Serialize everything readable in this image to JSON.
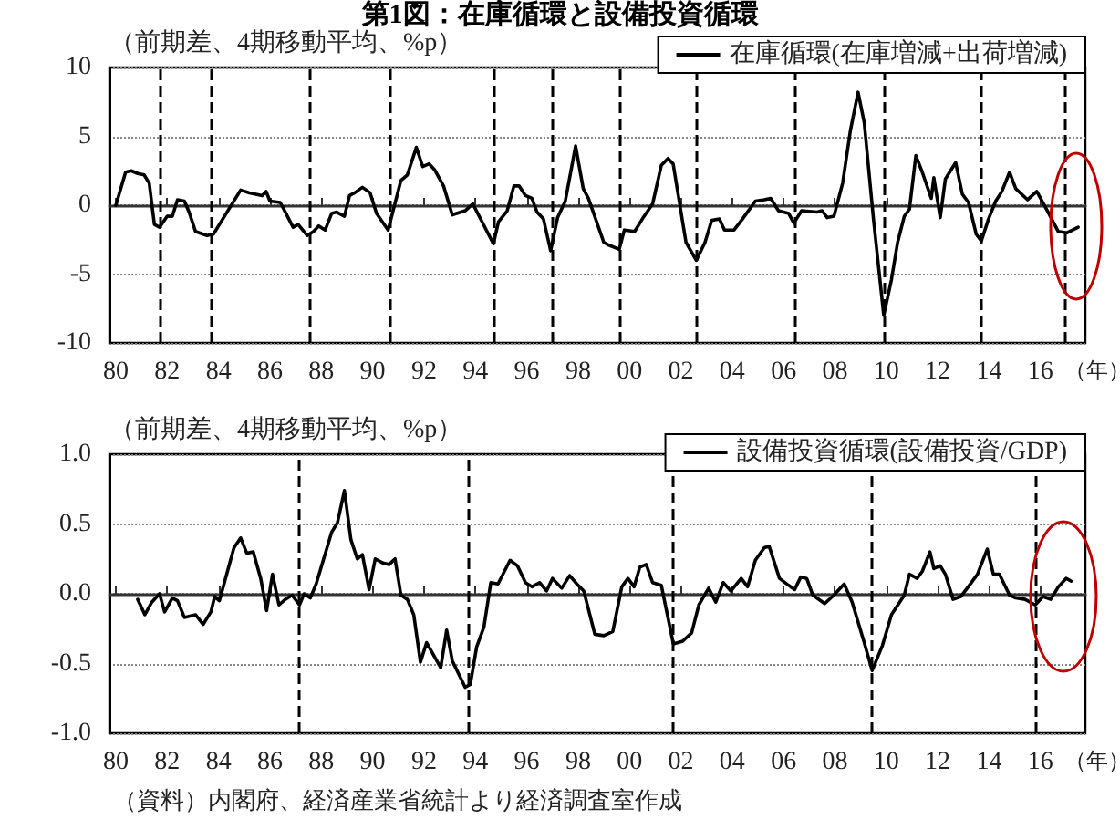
{
  "chart_data": [
    {
      "type": "line",
      "title": "第1図：在庫循環と設備投資循環",
      "ylabel": "（前期差、4期移動平均、%p）",
      "xlabel": "（年）",
      "xlim": [
        1979.75,
        2017.75
      ],
      "xticks": [
        {
          "value": 1980,
          "label": "80"
        },
        {
          "value": 1982,
          "label": "82"
        },
        {
          "value": 1984,
          "label": "84"
        },
        {
          "value": 1986,
          "label": "86"
        },
        {
          "value": 1988,
          "label": "88"
        },
        {
          "value": 1990,
          "label": "90"
        },
        {
          "value": 1992,
          "label": "92"
        },
        {
          "value": 1994,
          "label": "94"
        },
        {
          "value": 1996,
          "label": "96"
        },
        {
          "value": 1998,
          "label": "98"
        },
        {
          "value": 2000,
          "label": "00"
        },
        {
          "value": 2002,
          "label": "02"
        },
        {
          "value": 2004,
          "label": "04"
        },
        {
          "value": 2006,
          "label": "06"
        },
        {
          "value": 2008,
          "label": "08"
        },
        {
          "value": 2010,
          "label": "10"
        },
        {
          "value": 2012,
          "label": "12"
        },
        {
          "value": 2014,
          "label": "14"
        },
        {
          "value": 2016,
          "label": "16"
        }
      ],
      "ylim": [
        -10,
        10
      ],
      "yticks": [
        -10,
        -5,
        0,
        5,
        10
      ],
      "grid": "y",
      "legend": "top right",
      "marker": "none",
      "line_style": "solid",
      "series": [
        {
          "name": "在庫循環(在庫増減+出荷増減)",
          "color": "#000000",
          "x": [
            1980.0,
            1980.38,
            1980.6,
            1980.85,
            1981.1,
            1981.3,
            1981.5,
            1981.7,
            1982.0,
            1982.2,
            1982.4,
            1982.67,
            1982.85,
            1983.1,
            1983.55,
            1983.8,
            1984.86,
            1985.2,
            1985.7,
            1985.85,
            1986.0,
            1986.4,
            1986.6,
            1986.9,
            1987.1,
            1987.45,
            1987.7,
            1987.9,
            1988.15,
            1988.4,
            1988.6,
            1988.9,
            1989.1,
            1989.3,
            1989.6,
            1989.9,
            1990.15,
            1990.6,
            1991.1,
            1991.35,
            1991.7,
            1991.95,
            1992.2,
            1992.4,
            1992.76,
            1993.1,
            1993.6,
            1993.9,
            1994.7,
            1994.9,
            1995.24,
            1995.5,
            1995.7,
            1995.95,
            1996.2,
            1996.4,
            1996.65,
            1996.93,
            1997.2,
            1997.5,
            1997.9,
            1998.2,
            1998.4,
            1999.0,
            1999.2,
            1999.6,
            1999.8,
            2000.2,
            2000.5,
            2000.9,
            2001.24,
            2001.5,
            2001.7,
            2002.2,
            2002.6,
            2002.94,
            2003.2,
            2003.5,
            2003.7,
            2004.07,
            2004.4,
            2004.9,
            2005.25,
            2005.5,
            2005.8,
            2006.2,
            2006.4,
            2006.7,
            2007.3,
            2007.5,
            2007.7,
            2007.96,
            2008.3,
            2008.6,
            2008.9,
            2009.14,
            2009.5,
            2009.9,
            2010.2,
            2010.44,
            2010.7,
            2010.9,
            2011.15,
            2011.4,
            2011.75,
            2011.85,
            2012.1,
            2012.3,
            2012.7,
            2012.96,
            2013.2,
            2013.5,
            2013.7,
            2013.98,
            2014.26,
            2014.5,
            2014.8,
            2015.04,
            2015.5,
            2015.86,
            2016.3,
            2016.69,
            2017.04,
            2017.47
          ],
          "values": [
            0,
            2.4,
            2.5,
            2.3,
            2.2,
            1.6,
            -1.4,
            -1.6,
            -0.8,
            -0.8,
            0.4,
            0.3,
            -0.5,
            -1.9,
            -2.2,
            -2.1,
            1.1,
            0.9,
            0.7,
            1.0,
            0.3,
            0.2,
            -0.5,
            -1.6,
            -1.4,
            -2.2,
            -1.9,
            -1.5,
            -1.8,
            -0.6,
            -0.5,
            -0.8,
            0.7,
            0.9,
            1.3,
            0.9,
            -0.6,
            -1.8,
            1.8,
            2.2,
            4.2,
            2.8,
            3.0,
            2.6,
            1.4,
            -0.7,
            -0.4,
            0.1,
            -2.8,
            -1.2,
            -0.4,
            1.4,
            1.4,
            0.7,
            0.5,
            -0.5,
            -1.0,
            -3.3,
            -0.9,
            0.3,
            4.3,
            1.2,
            0.5,
            -2.7,
            -2.9,
            -3.2,
            -1.8,
            -1.9,
            -1.0,
            0.1,
            2.9,
            3.4,
            3.0,
            -2.7,
            -4.0,
            -2.7,
            -1.1,
            -1.0,
            -1.8,
            -1.8,
            -1.0,
            0.3,
            0.4,
            0.5,
            -0.4,
            -0.6,
            -1.3,
            -0.4,
            -0.5,
            -0.4,
            -0.9,
            -0.8,
            1.6,
            5.4,
            8.2,
            6.0,
            -1.0,
            -8.0,
            -5.4,
            -2.7,
            -0.8,
            -0.3,
            3.6,
            2.4,
            0.5,
            2.0,
            -0.9,
            1.9,
            3.1,
            0.8,
            0.2,
            -2.1,
            -2.6,
            -1.0,
            0.3,
            1.0,
            2.4,
            1.2,
            0.4,
            1.0,
            -0.5,
            -1.9,
            -2.0,
            -1.6
          ]
        }
      ],
      "ref_lines": [
        {
          "axis": "x",
          "value": 1981.7,
          "color": "#000000",
          "line_style": "dashed"
        },
        {
          "axis": "x",
          "value": 1983.68,
          "color": "#000000",
          "line_style": "dashed"
        },
        {
          "axis": "x",
          "value": 1987.57,
          "color": "#000000",
          "line_style": "dashed"
        },
        {
          "axis": "x",
          "value": 1990.68,
          "color": "#000000",
          "line_style": "dashed"
        },
        {
          "axis": "x",
          "value": 1994.71,
          "color": "#000000",
          "line_style": "dashed"
        },
        {
          "axis": "x",
          "value": 1996.97,
          "color": "#000000",
          "line_style": "dashed"
        },
        {
          "axis": "x",
          "value": 1999.59,
          "color": "#000000",
          "line_style": "dashed"
        },
        {
          "axis": "x",
          "value": 2002.63,
          "color": "#000000",
          "line_style": "dashed"
        },
        {
          "axis": "x",
          "value": 2006.45,
          "color": "#000000",
          "line_style": "dashed"
        },
        {
          "axis": "x",
          "value": 2009.91,
          "color": "#000000",
          "line_style": "dashed"
        },
        {
          "axis": "x",
          "value": 2013.66,
          "color": "#000000",
          "line_style": "dashed"
        },
        {
          "axis": "x",
          "value": 2016.92,
          "color": "#000000",
          "line_style": "dashed"
        }
      ]
    },
    {
      "type": "line",
      "ylabel": "（前期差、4期移動平均、%p）",
      "xlabel": "（年）",
      "xlim": [
        1979.75,
        2017.75
      ],
      "xticks": [
        {
          "value": 1980,
          "label": "80"
        },
        {
          "value": 1982,
          "label": "82"
        },
        {
          "value": 1984,
          "label": "84"
        },
        {
          "value": 1986,
          "label": "86"
        },
        {
          "value": 1988,
          "label": "88"
        },
        {
          "value": 1990,
          "label": "90"
        },
        {
          "value": 1992,
          "label": "92"
        },
        {
          "value": 1994,
          "label": "94"
        },
        {
          "value": 1996,
          "label": "96"
        },
        {
          "value": 1998,
          "label": "98"
        },
        {
          "value": 2000,
          "label": "00"
        },
        {
          "value": 2002,
          "label": "02"
        },
        {
          "value": 2004,
          "label": "04"
        },
        {
          "value": 2006,
          "label": "06"
        },
        {
          "value": 2008,
          "label": "08"
        },
        {
          "value": 2010,
          "label": "10"
        },
        {
          "value": 2012,
          "label": "12"
        },
        {
          "value": 2014,
          "label": "14"
        },
        {
          "value": 2016,
          "label": "16"
        }
      ],
      "ylim": [
        -1,
        1
      ],
      "yticks": [
        {
          "value": -1,
          "label": "-1.0"
        },
        {
          "value": -0.5,
          "label": "-0.5"
        },
        {
          "value": 0,
          "label": "0.0"
        },
        {
          "value": 0.5,
          "label": "0.5"
        },
        {
          "value": 1,
          "label": "1.0"
        }
      ],
      "grid": "y",
      "legend": "top right",
      "marker": "none",
      "line_style": "solid",
      "series": [
        {
          "name": "設備投資循環(設備投資/GDP)",
          "color": "#000000",
          "x": [
            1980.85,
            1981.13,
            1981.4,
            1981.7,
            1981.9,
            1982.2,
            1982.4,
            1982.67,
            1983.1,
            1983.4,
            1983.7,
            1983.85,
            1984.03,
            1984.6,
            1984.86,
            1985.1,
            1985.35,
            1985.64,
            1985.87,
            1986.1,
            1986.35,
            1986.6,
            1986.86,
            1987.15,
            1987.33,
            1987.57,
            1987.8,
            1988.4,
            1988.63,
            1988.9,
            1989.15,
            1989.4,
            1989.6,
            1989.86,
            1990.1,
            1990.4,
            1990.64,
            1990.87,
            1991.1,
            1991.35,
            1991.6,
            1991.86,
            1992.1,
            1992.65,
            1992.88,
            1993.1,
            1993.6,
            1993.8,
            1994.05,
            1994.33,
            1994.6,
            1994.88,
            1995.35,
            1995.64,
            1995.95,
            1996.2,
            1996.5,
            1996.77,
            1997.0,
            1997.36,
            1997.67,
            1997.95,
            1998.22,
            1998.65,
            1999.0,
            1999.35,
            1999.7,
            1999.94,
            2000.18,
            2000.4,
            2000.65,
            2000.9,
            2001.24,
            2001.71,
            2002.07,
            2002.42,
            2002.7,
            2003.08,
            2003.36,
            2003.65,
            2003.95,
            2004.35,
            2004.6,
            2004.9,
            2005.25,
            2005.44,
            2005.84,
            2006.2,
            2006.43,
            2006.67,
            2006.9,
            2007.14,
            2007.6,
            2007.96,
            2008.36,
            2008.67,
            2009.14,
            2009.45,
            2009.85,
            2010.2,
            2010.7,
            2010.9,
            2011.2,
            2011.4,
            2011.7,
            2011.85,
            2012.1,
            2012.3,
            2012.6,
            2012.9,
            2013.27,
            2013.55,
            2013.93,
            2014.17,
            2014.4,
            2014.8,
            2015.04,
            2015.4,
            2015.8,
            2016.1,
            2016.4,
            2016.7,
            2017.0,
            2017.2
          ],
          "values": [
            -0.04,
            -0.15,
            -0.06,
            0.0,
            -0.13,
            -0.03,
            -0.05,
            -0.17,
            -0.15,
            -0.22,
            -0.13,
            -0.02,
            -0.05,
            0.33,
            0.4,
            0.29,
            0.3,
            0.11,
            -0.12,
            0.14,
            -0.08,
            -0.04,
            -0.01,
            -0.08,
            0.0,
            -0.03,
            0.07,
            0.44,
            0.51,
            0.74,
            0.39,
            0.25,
            0.28,
            0.03,
            0.25,
            0.22,
            0.21,
            0.25,
            -0.01,
            -0.04,
            -0.15,
            -0.49,
            -0.35,
            -0.53,
            -0.26,
            -0.48,
            -0.67,
            -0.65,
            -0.38,
            -0.24,
            0.08,
            0.07,
            0.24,
            0.2,
            0.08,
            0.05,
            0.08,
            0.02,
            0.11,
            0.04,
            0.13,
            0.07,
            0.02,
            -0.29,
            -0.3,
            -0.27,
            0.05,
            0.11,
            0.05,
            0.19,
            0.21,
            0.08,
            0.06,
            -0.36,
            -0.34,
            -0.28,
            -0.08,
            0.04,
            -0.06,
            0.08,
            0.02,
            0.11,
            0.05,
            0.24,
            0.33,
            0.34,
            0.11,
            0.06,
            0.03,
            0.12,
            0.11,
            -0.01,
            -0.07,
            -0.01,
            0.07,
            -0.06,
            -0.35,
            -0.55,
            -0.37,
            -0.15,
            -0.01,
            0.14,
            0.11,
            0.16,
            0.3,
            0.18,
            0.2,
            0.14,
            -0.04,
            -0.02,
            0.07,
            0.14,
            0.32,
            0.14,
            0.14,
            -0.01,
            -0.03,
            -0.04,
            -0.08,
            -0.02,
            -0.04,
            0.05,
            0.11,
            0.09
          ]
        }
      ],
      "ref_lines": [
        {
          "axis": "x",
          "value": 1987.14,
          "color": "#000000",
          "line_style": "dashed"
        },
        {
          "axis": "x",
          "value": 1993.72,
          "color": "#000000",
          "line_style": "dashed"
        },
        {
          "axis": "x",
          "value": 2001.7,
          "color": "#000000",
          "line_style": "dashed"
        },
        {
          "axis": "x",
          "value": 2009.42,
          "color": "#000000",
          "line_style": "dashed"
        },
        {
          "axis": "x",
          "value": 2015.78,
          "color": "#000000",
          "line_style": "dashed"
        }
      ],
      "annotations": [
        "（資料）内閣府、経済産業省統計より経済調査室作成"
      ]
    }
  ]
}
